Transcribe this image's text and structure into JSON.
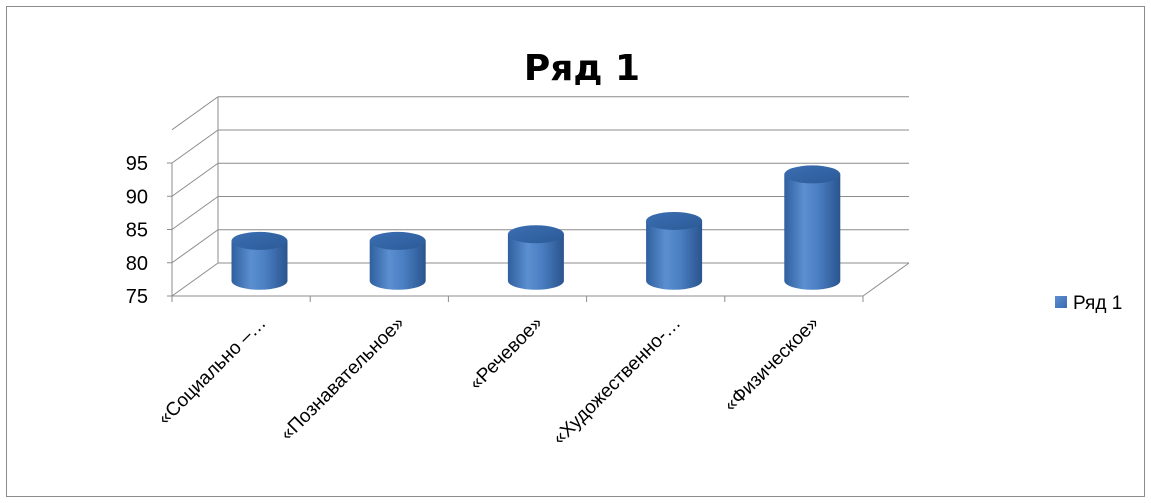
{
  "chart_data": {
    "type": "bar",
    "style": "3d-cylinder",
    "title": "Ряд 1",
    "categories": [
      "«Социально –…",
      "«Познавательное»",
      "«Речевое»",
      "«Художественно-…",
      "«Физическое»"
    ],
    "series": [
      {
        "name": "Ряд 1",
        "values": [
          81,
          81,
          82,
          84,
          91
        ],
        "color": "#4f81bd"
      }
    ],
    "ylim": [
      75,
      95
    ],
    "yticks": [
      75,
      80,
      85,
      90,
      95
    ],
    "grid": true,
    "legend_position": "right",
    "xlabel": "",
    "ylabel": ""
  }
}
